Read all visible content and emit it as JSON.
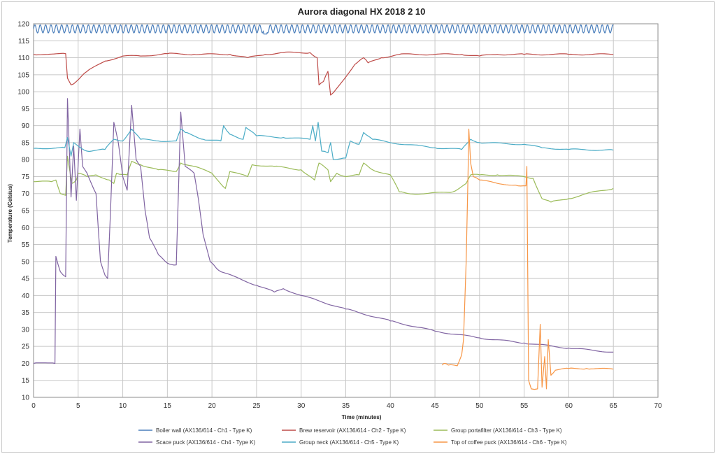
{
  "chart_data": {
    "type": "line",
    "title": "Aurora diagonal HX 2018 2 10",
    "xlabel": "Time (minutes)",
    "ylabel": "Temperature (Celsius)",
    "xlim": [
      0,
      70
    ],
    "ylim": [
      10,
      120
    ],
    "xticks": [
      0,
      5,
      10,
      15,
      20,
      25,
      30,
      35,
      40,
      45,
      50,
      55,
      60,
      65,
      70
    ],
    "yticks": [
      10,
      15,
      20,
      25,
      30,
      35,
      40,
      45,
      50,
      55,
      60,
      65,
      70,
      75,
      80,
      85,
      90,
      95,
      100,
      105,
      110,
      115,
      120
    ],
    "grid": true,
    "legend_position": "bottom",
    "series": [
      {
        "name": "Boiler wall (AX136/614 - Ch1 - Type K)",
        "color": "#4a7ebb",
        "oscillation": {
          "center": 118.5,
          "amplitude": 1.2,
          "period": 0.6,
          "x_range": [
            0,
            65
          ]
        },
        "dip": {
          "x_range": [
            25.8,
            26.2
          ],
          "value": 117
        }
      },
      {
        "name": "Brew reservoir (AX136/614 - Ch2 - Type K)",
        "color": "#be4b48",
        "points": [
          [
            0,
            111
          ],
          [
            3.6,
            111.2
          ],
          [
            3.8,
            104
          ],
          [
            4.2,
            102
          ],
          [
            4.8,
            103
          ],
          [
            6,
            106
          ],
          [
            8,
            109
          ],
          [
            10,
            110.5
          ],
          [
            12,
            110.5
          ],
          [
            15,
            111.2
          ],
          [
            18,
            111
          ],
          [
            22,
            111
          ],
          [
            24,
            110
          ],
          [
            26,
            111
          ],
          [
            28,
            111.5
          ],
          [
            31,
            111.5
          ],
          [
            31.8,
            110
          ],
          [
            32,
            102
          ],
          [
            32.5,
            103
          ],
          [
            33,
            106
          ],
          [
            33.3,
            99
          ],
          [
            34,
            101
          ],
          [
            36,
            108
          ],
          [
            37,
            110
          ],
          [
            37.5,
            108.5
          ],
          [
            39,
            110
          ],
          [
            41,
            111
          ],
          [
            45,
            111
          ],
          [
            48,
            111
          ],
          [
            50,
            110.5
          ],
          [
            52,
            111
          ],
          [
            55,
            111
          ],
          [
            60,
            111
          ],
          [
            65,
            111
          ]
        ]
      },
      {
        "name": "Group portafilter (AX136/614 - Ch3 - Type K)",
        "color": "#9bbb59",
        "points": [
          [
            0,
            73.5
          ],
          [
            2,
            73.5
          ],
          [
            2.5,
            74
          ],
          [
            3,
            70
          ],
          [
            3.6,
            69.5
          ],
          [
            3.8,
            81
          ],
          [
            4.3,
            73
          ],
          [
            4.8,
            74
          ],
          [
            5,
            76
          ],
          [
            6,
            75
          ],
          [
            7,
            75.5
          ],
          [
            8.5,
            74
          ],
          [
            9,
            73
          ],
          [
            9.3,
            76
          ],
          [
            10.5,
            75.5
          ],
          [
            11,
            79.5
          ],
          [
            12,
            78.5
          ],
          [
            14,
            77
          ],
          [
            16,
            76.5
          ],
          [
            16.5,
            79
          ],
          [
            18,
            78
          ],
          [
            20,
            76
          ],
          [
            21.5,
            71.5
          ],
          [
            22,
            76.5
          ],
          [
            24,
            75
          ],
          [
            24.5,
            78.5
          ],
          [
            27,
            78
          ],
          [
            30,
            77
          ],
          [
            31.5,
            74
          ],
          [
            32,
            79
          ],
          [
            33,
            77
          ],
          [
            33.3,
            73.5
          ],
          [
            34,
            76
          ],
          [
            35,
            75
          ],
          [
            36.5,
            75.5
          ],
          [
            37,
            79
          ],
          [
            38,
            77
          ],
          [
            40,
            75.5
          ],
          [
            41,
            70.5
          ],
          [
            42,
            70
          ],
          [
            44,
            70
          ],
          [
            47,
            70.5
          ],
          [
            48.5,
            73
          ],
          [
            49,
            75.5
          ],
          [
            50,
            75.5
          ],
          [
            52,
            75.5
          ],
          [
            55,
            75
          ],
          [
            56,
            74.5
          ],
          [
            57,
            68.5
          ],
          [
            58,
            67.5
          ],
          [
            60,
            68.5
          ],
          [
            62,
            70
          ],
          [
            65,
            71.5
          ]
        ]
      },
      {
        "name": "Scace puck (AX136/614 - Ch4 - Type K)",
        "color": "#8064a2",
        "points": [
          [
            0,
            20
          ],
          [
            2.4,
            20
          ],
          [
            2.5,
            51.5
          ],
          [
            3,
            47
          ],
          [
            3.6,
            45.5
          ],
          [
            3.8,
            98
          ],
          [
            4.2,
            69
          ],
          [
            4.5,
            84
          ],
          [
            4.8,
            68
          ],
          [
            5.2,
            89
          ],
          [
            5.5,
            78
          ],
          [
            6,
            76
          ],
          [
            7,
            70
          ],
          [
            7.5,
            50
          ],
          [
            8,
            46
          ],
          [
            8.3,
            45
          ],
          [
            8.6,
            63
          ],
          [
            9,
            91
          ],
          [
            9.5,
            85
          ],
          [
            10,
            75
          ],
          [
            10.5,
            71
          ],
          [
            11,
            96
          ],
          [
            11.5,
            80
          ],
          [
            12,
            78
          ],
          [
            12.5,
            65
          ],
          [
            13,
            57
          ],
          [
            14,
            52
          ],
          [
            15,
            49.5
          ],
          [
            16,
            49
          ],
          [
            16.5,
            94
          ],
          [
            17,
            78
          ],
          [
            18,
            76
          ],
          [
            18.5,
            68
          ],
          [
            19,
            58
          ],
          [
            19.8,
            50
          ],
          [
            20.5,
            48
          ],
          [
            21,
            47
          ],
          [
            25,
            43
          ],
          [
            27,
            41
          ],
          [
            28,
            42
          ],
          [
            30,
            40
          ],
          [
            35,
            36
          ],
          [
            40,
            32.5
          ],
          [
            45,
            29.5
          ],
          [
            50,
            27.5
          ],
          [
            55,
            26
          ],
          [
            60,
            24.5
          ],
          [
            65,
            23.3
          ]
        ]
      },
      {
        "name": "Group neck (AX136/614 - Ch5 - Type K)",
        "color": "#4bacc6",
        "points": [
          [
            0,
            83.3
          ],
          [
            3.5,
            83.5
          ],
          [
            3.8,
            86.5
          ],
          [
            4.2,
            81
          ],
          [
            4.5,
            85
          ],
          [
            5,
            84
          ],
          [
            6,
            82.5
          ],
          [
            8,
            83
          ],
          [
            9,
            86
          ],
          [
            10,
            85.5
          ],
          [
            11,
            89
          ],
          [
            12,
            86
          ],
          [
            14,
            85.5
          ],
          [
            16,
            85.5
          ],
          [
            16.5,
            89
          ],
          [
            17,
            88
          ],
          [
            19,
            86
          ],
          [
            21,
            85.5
          ],
          [
            21.3,
            90
          ],
          [
            22,
            87.5
          ],
          [
            23.5,
            86
          ],
          [
            23.8,
            89.5
          ],
          [
            25,
            87
          ],
          [
            28,
            86.5
          ],
          [
            31,
            86
          ],
          [
            31.3,
            90
          ],
          [
            31.6,
            85.5
          ],
          [
            31.9,
            91
          ],
          [
            32.3,
            82.5
          ],
          [
            33,
            82
          ],
          [
            33.3,
            85
          ],
          [
            33.6,
            80
          ],
          [
            35,
            80.5
          ],
          [
            35.5,
            85.5
          ],
          [
            36.5,
            84.5
          ],
          [
            37,
            88
          ],
          [
            38,
            86
          ],
          [
            40,
            85
          ],
          [
            45,
            83.5
          ],
          [
            48,
            83
          ],
          [
            49,
            86
          ],
          [
            50,
            85
          ],
          [
            55,
            84.5
          ],
          [
            57,
            83.5
          ],
          [
            60,
            83
          ],
          [
            65,
            82.8
          ]
        ]
      },
      {
        "name": "Top of coffee puck (AX136/614 - Ch6 - Type K)",
        "color": "#f79646",
        "points": [
          [
            45.8,
            19.5
          ],
          [
            46,
            20
          ],
          [
            46.5,
            19.5
          ],
          [
            47.5,
            19.3
          ],
          [
            48,
            22.5
          ],
          [
            48.2,
            27
          ],
          [
            48.5,
            50
          ],
          [
            48.7,
            75
          ],
          [
            48.8,
            89
          ],
          [
            49,
            79
          ],
          [
            49.3,
            75
          ],
          [
            50,
            74
          ],
          [
            52,
            73
          ],
          [
            54,
            72.5
          ],
          [
            55.2,
            72.3
          ],
          [
            55.3,
            78
          ],
          [
            55.5,
            15
          ],
          [
            55.8,
            12.5
          ],
          [
            56.5,
            12.5
          ],
          [
            56.8,
            31.5
          ],
          [
            57,
            13
          ],
          [
            57.3,
            22
          ],
          [
            57.5,
            12.5
          ],
          [
            57.7,
            27
          ],
          [
            58,
            16.5
          ],
          [
            58.5,
            18
          ],
          [
            60,
            18.5
          ],
          [
            62,
            18.5
          ],
          [
            65,
            18.3
          ]
        ]
      }
    ]
  }
}
